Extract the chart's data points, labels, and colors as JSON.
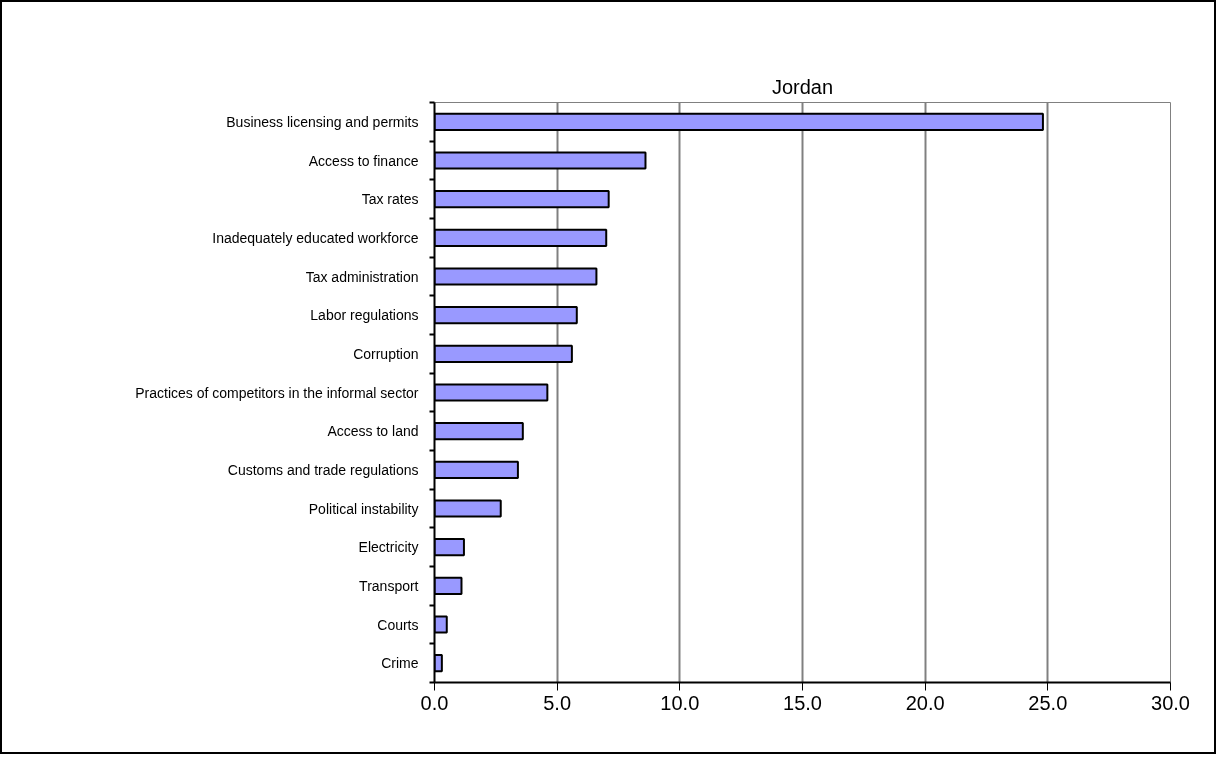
{
  "chart_data": {
    "type": "bar",
    "orientation": "horizontal",
    "title": "Jordan",
    "categories": [
      "Business licensing and permits",
      "Access to finance",
      "Tax rates",
      "Inadequately educated workforce",
      "Tax administration",
      "Labor regulations",
      "Corruption",
      "Practices of competitors in the informal sector",
      "Access to land",
      "Customs and trade regulations",
      "Political instability",
      "Electricity",
      "Transport",
      "Courts",
      "Crime"
    ],
    "values": [
      24.8,
      8.6,
      7.1,
      7.0,
      6.6,
      5.8,
      5.6,
      4.6,
      3.6,
      3.4,
      2.7,
      1.2,
      1.1,
      0.5,
      0.3
    ],
    "color": "#9999ff",
    "xlim": [
      0,
      30
    ],
    "xticks": [
      {
        "value": 0,
        "label": "0.0"
      },
      {
        "value": 5,
        "label": "5.0"
      },
      {
        "value": 10,
        "label": "10.0"
      },
      {
        "value": 15,
        "label": "15.0"
      },
      {
        "value": 20,
        "label": "20.0"
      },
      {
        "value": 25,
        "label": "25.0"
      },
      {
        "value": 30,
        "label": "30.0"
      }
    ],
    "grid": "x"
  }
}
